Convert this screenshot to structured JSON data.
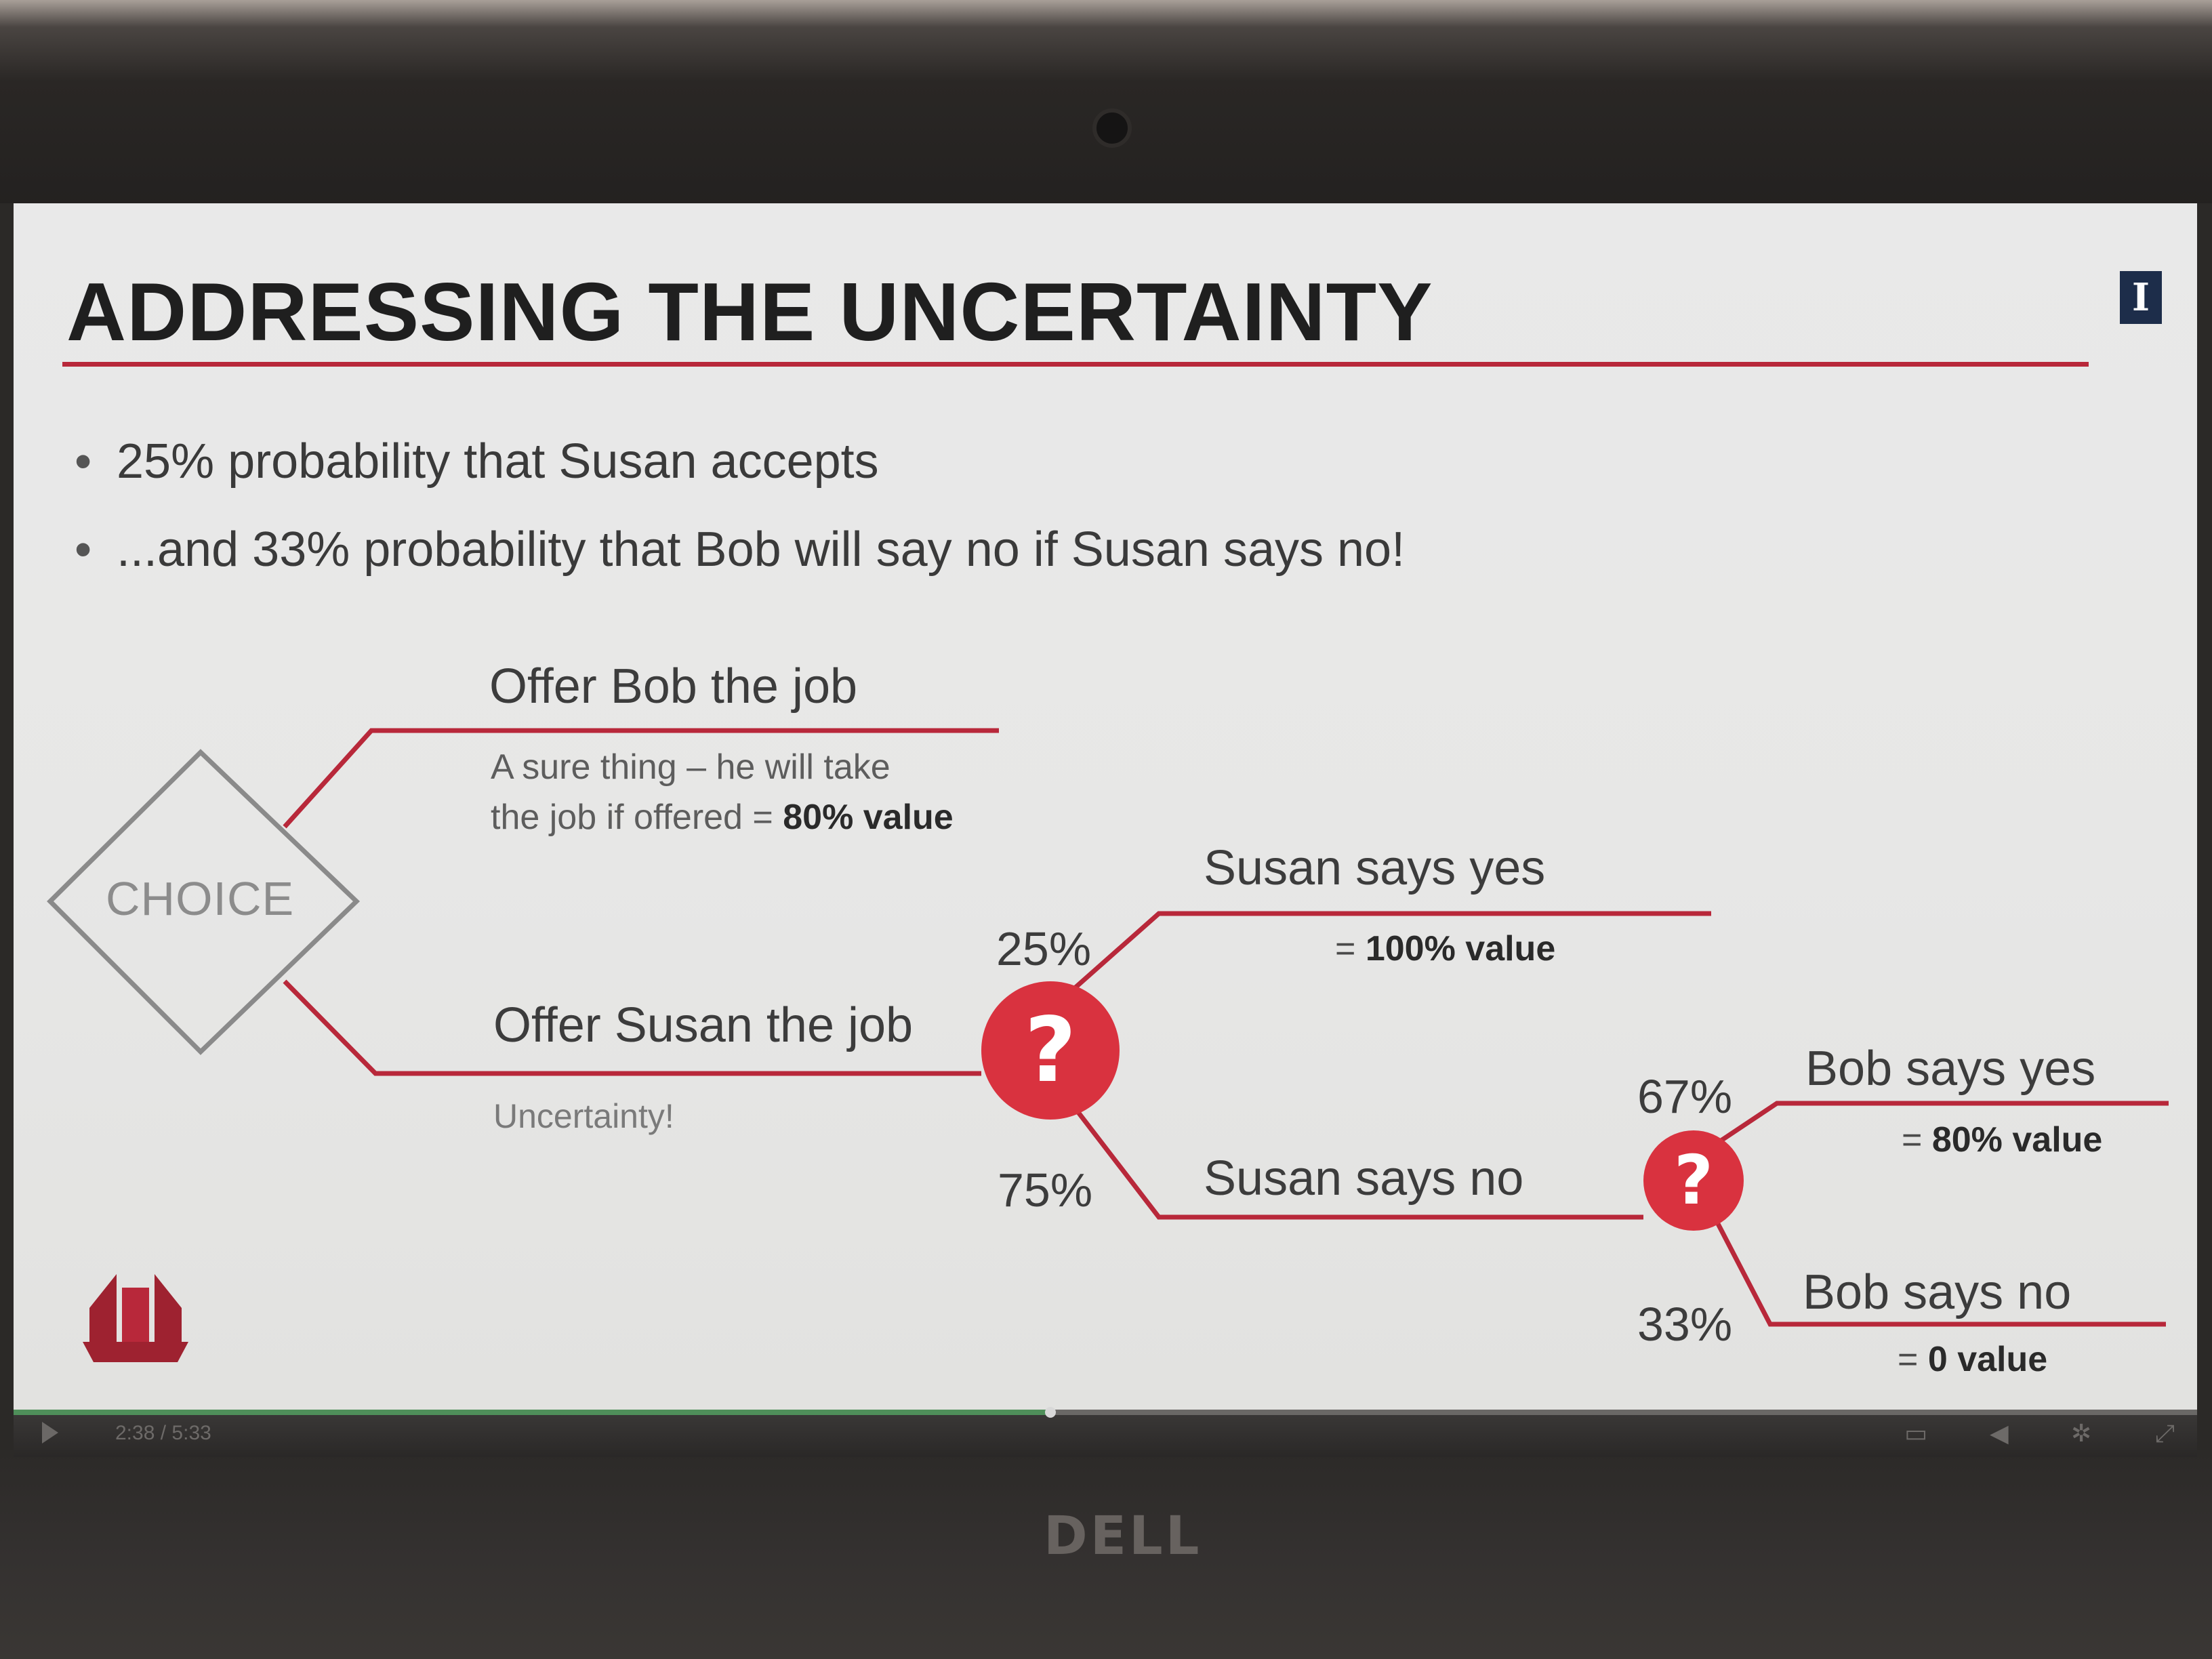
{
  "slide": {
    "title": "ADDRESSING THE UNCERTAINTY",
    "corner_badge": "I",
    "bullets": [
      "25% probability that Susan accepts",
      "...and 33% probability that Bob will say no if Susan says no!"
    ]
  },
  "tree": {
    "choice": "CHOICE",
    "offer_bob": {
      "label": "Offer Bob the job",
      "desc_line1": "A sure thing – he will take",
      "desc_line2_prefix": "the job if offered = ",
      "desc_value": "80% value"
    },
    "offer_susan": {
      "label": "Offer Susan the job",
      "desc": "Uncertainty!"
    },
    "susan_node": {
      "symbol": "?",
      "yes_pct": "25%",
      "yes_label": "Susan says yes",
      "yes_value_prefix": "= ",
      "yes_value": "100% value",
      "no_pct": "75%",
      "no_label": "Susan says no"
    },
    "bob_node": {
      "symbol": "?",
      "yes_pct": "67%",
      "yes_label": "Bob says yes",
      "yes_value_prefix": "= ",
      "yes_value": "80% value",
      "no_pct": "33%",
      "no_label": "Bob says no",
      "no_value_prefix": "= ",
      "no_value": "0 value"
    }
  },
  "player": {
    "current_time": "2:38",
    "separator": "/",
    "total_time": "5:33",
    "progress": 0.475
  },
  "device": {
    "brand": "DELL"
  },
  "colors": {
    "accent": "#d9323f",
    "rule": "#b8283a",
    "text": "#3c3c3c"
  }
}
